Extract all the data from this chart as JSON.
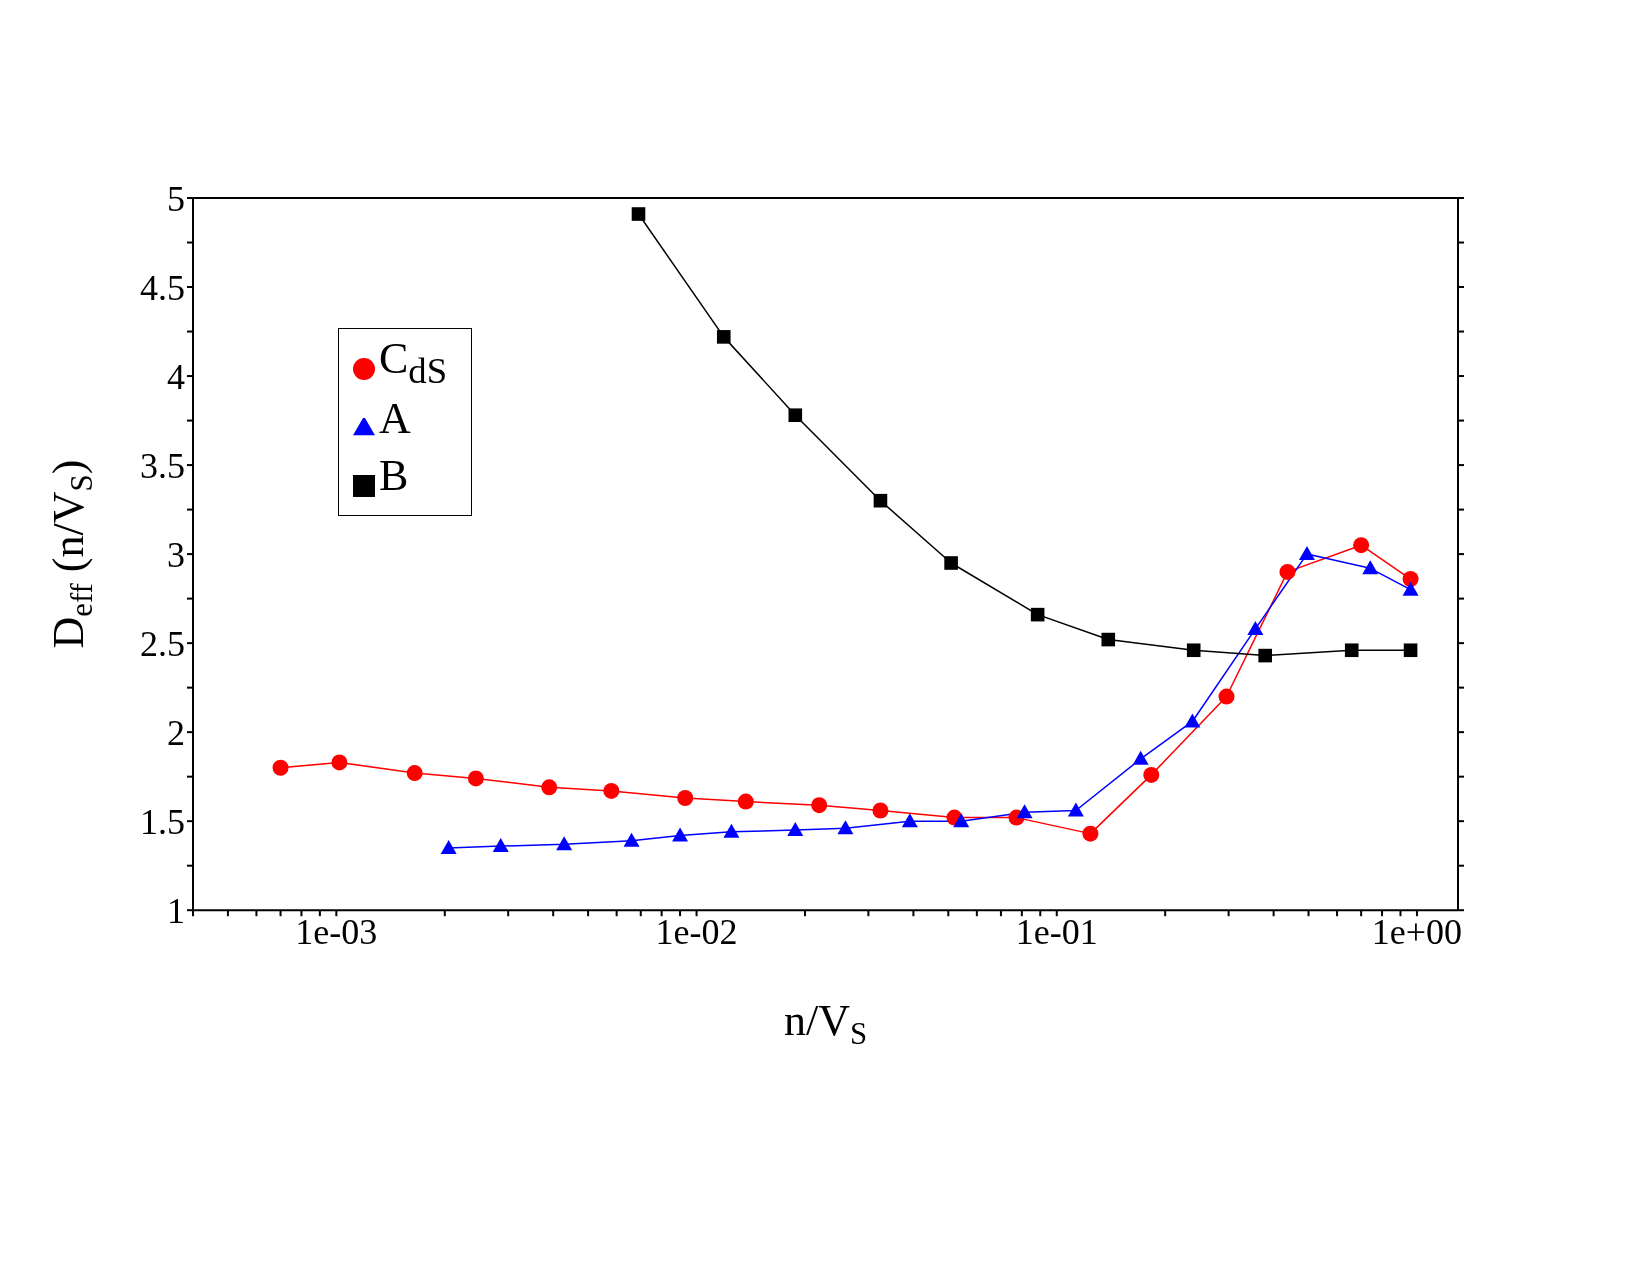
{
  "chart_data": {
    "type": "line",
    "xlabel": "n/V$_{S}$",
    "ylabel": "D$_{eff}$ (n/V$_{S}$)",
    "log": "x",
    "xlim": [
      0.0004,
      1.3
    ],
    "ylim": [
      1,
      5
    ],
    "xticks": [
      {
        "value": 0.0004,
        "label": null
      },
      {
        "value": 0.0005,
        "label": null
      },
      {
        "value": 0.0006,
        "label": null
      },
      {
        "value": 0.0007,
        "label": null
      },
      {
        "value": 0.0008,
        "label": null
      },
      {
        "value": 0.0009,
        "label": null
      },
      {
        "value": 0.001,
        "label": "1e-03"
      },
      {
        "value": 0.002,
        "label": null
      },
      {
        "value": 0.003,
        "label": null
      },
      {
        "value": 0.004,
        "label": null
      },
      {
        "value": 0.005,
        "label": null
      },
      {
        "value": 0.006,
        "label": null
      },
      {
        "value": 0.007,
        "label": null
      },
      {
        "value": 0.008,
        "label": null
      },
      {
        "value": 0.009,
        "label": null
      },
      {
        "value": 0.01,
        "label": "1e-02"
      },
      {
        "value": 0.02,
        "label": null
      },
      {
        "value": 0.03,
        "label": null
      },
      {
        "value": 0.04,
        "label": null
      },
      {
        "value": 0.05,
        "label": null
      },
      {
        "value": 0.06,
        "label": null
      },
      {
        "value": 0.07,
        "label": null
      },
      {
        "value": 0.08,
        "label": null
      },
      {
        "value": 0.09,
        "label": null
      },
      {
        "value": 0.1,
        "label": "1e-01"
      },
      {
        "value": 0.2,
        "label": null
      },
      {
        "value": 0.3,
        "label": null
      },
      {
        "value": 0.4,
        "label": null
      },
      {
        "value": 0.5,
        "label": null
      },
      {
        "value": 0.6,
        "label": null
      },
      {
        "value": 0.7,
        "label": null
      },
      {
        "value": 0.8,
        "label": null
      },
      {
        "value": 0.9,
        "label": null
      },
      {
        "value": 1,
        "label": "1e+00"
      }
    ],
    "yticks": [
      1,
      {
        "value": 1.25,
        "label": null
      },
      1.5,
      {
        "value": 1.75,
        "label": null
      },
      2,
      {
        "value": 2.25,
        "label": null
      },
      2.5,
      {
        "value": 2.75,
        "label": null
      },
      3,
      {
        "value": 3.25,
        "label": null
      },
      3.5,
      {
        "value": 3.75,
        "label": null
      },
      4,
      {
        "value": 4.25,
        "label": null
      },
      4.5,
      {
        "value": 4.75,
        "label": null
      },
      5
    ],
    "grid": false,
    "legend": "top left",
    "line_style": "solid",
    "series": [
      {
        "name": "C$_{dS}$",
        "color": "#ff0000",
        "marker": "circle",
        "x": [
          0.0007,
          0.00102,
          0.00165,
          0.00244,
          0.0039,
          0.0058,
          0.0093,
          0.0137,
          0.0219,
          0.0324,
          0.052,
          0.0773,
          0.124,
          0.183,
          0.296,
          0.437,
          0.7,
          0.96
        ],
        "values": [
          1.8,
          1.83,
          1.77,
          1.74,
          1.69,
          1.67,
          1.63,
          1.61,
          1.59,
          1.56,
          1.52,
          1.52,
          1.43,
          1.76,
          2.2,
          2.9,
          3.05,
          2.86
        ]
      },
      {
        "name": "A",
        "color": "#0000ff",
        "marker": "triangle",
        "x": [
          0.00205,
          0.00286,
          0.00429,
          0.0066,
          0.009,
          0.0125,
          0.0188,
          0.0259,
          0.0391,
          0.0543,
          0.0814,
          0.113,
          0.171,
          0.238,
          0.356,
          0.495,
          0.742,
          0.96
        ],
        "values": [
          1.35,
          1.36,
          1.37,
          1.39,
          1.42,
          1.44,
          1.45,
          1.46,
          1.5,
          1.5,
          1.55,
          1.56,
          1.85,
          2.06,
          2.58,
          3.0,
          2.92,
          2.8
        ]
      },
      {
        "name": "B",
        "color": "#000000",
        "marker": "square",
        "x": [
          0.0069,
          0.0119,
          0.0188,
          0.0324,
          0.0509,
          0.0885,
          0.139,
          0.24,
          0.379,
          0.659,
          0.96
        ],
        "values": [
          4.91,
          4.22,
          3.78,
          3.3,
          2.95,
          2.66,
          2.52,
          2.46,
          2.43,
          2.46,
          2.46
        ]
      }
    ]
  }
}
